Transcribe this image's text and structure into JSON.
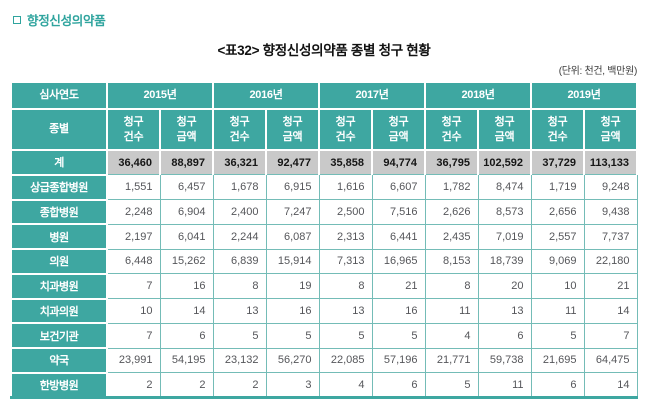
{
  "page": {
    "section_heading": "향정신성의약품",
    "title": "<표32> 향정신성의약품 종별 청구 현황",
    "unit_note": "(단위: 천건, 백만원)"
  },
  "colors": {
    "teal_header": "#3EA7A1",
    "grid_teal": "#74BCB7",
    "total_row_bg": "#C9C9C9",
    "data_text": "#55565A",
    "heading_teal": "#2FA49E"
  },
  "table": {
    "corner_header": "심사연도",
    "row_header": "종별",
    "years": [
      "2015년",
      "2016년",
      "2017년",
      "2018년",
      "2019년"
    ],
    "sub_headers": [
      [
        "청구",
        "건수"
      ],
      [
        "청구",
        "금액"
      ]
    ],
    "rows": [
      {
        "label": "계",
        "is_total": true,
        "values": [
          "36,460",
          "88,897",
          "36,321",
          "92,477",
          "35,858",
          "94,774",
          "36,795",
          "102,592",
          "37,729",
          "113,133"
        ]
      },
      {
        "label": "상급종합병원",
        "is_total": false,
        "values": [
          "1,551",
          "6,457",
          "1,678",
          "6,915",
          "1,616",
          "6,607",
          "1,782",
          "8,474",
          "1,719",
          "9,248"
        ]
      },
      {
        "label": "종합병원",
        "is_total": false,
        "values": [
          "2,248",
          "6,904",
          "2,400",
          "7,247",
          "2,500",
          "7,516",
          "2,626",
          "8,573",
          "2,656",
          "9,438"
        ]
      },
      {
        "label": "병원",
        "is_total": false,
        "values": [
          "2,197",
          "6,041",
          "2,244",
          "6,087",
          "2,313",
          "6,441",
          "2,435",
          "7,019",
          "2,557",
          "7,737"
        ]
      },
      {
        "label": "의원",
        "is_total": false,
        "values": [
          "6,448",
          "15,262",
          "6,839",
          "15,914",
          "7,313",
          "16,965",
          "8,153",
          "18,739",
          "9,069",
          "22,180"
        ]
      },
      {
        "label": "치과병원",
        "is_total": false,
        "values": [
          "7",
          "16",
          "8",
          "19",
          "8",
          "21",
          "8",
          "20",
          "10",
          "21"
        ]
      },
      {
        "label": "치과의원",
        "is_total": false,
        "values": [
          "10",
          "14",
          "13",
          "16",
          "13",
          "16",
          "11",
          "13",
          "11",
          "14"
        ]
      },
      {
        "label": "보건기관",
        "is_total": false,
        "values": [
          "7",
          "6",
          "5",
          "5",
          "5",
          "5",
          "4",
          "6",
          "5",
          "7"
        ]
      },
      {
        "label": "약국",
        "is_total": false,
        "values": [
          "23,991",
          "54,195",
          "23,132",
          "56,270",
          "22,085",
          "57,196",
          "21,771",
          "59,738",
          "21,695",
          "64,475"
        ]
      },
      {
        "label": "한방병원",
        "is_total": false,
        "values": [
          "2",
          "2",
          "2",
          "3",
          "4",
          "6",
          "5",
          "11",
          "6",
          "14"
        ]
      }
    ]
  }
}
